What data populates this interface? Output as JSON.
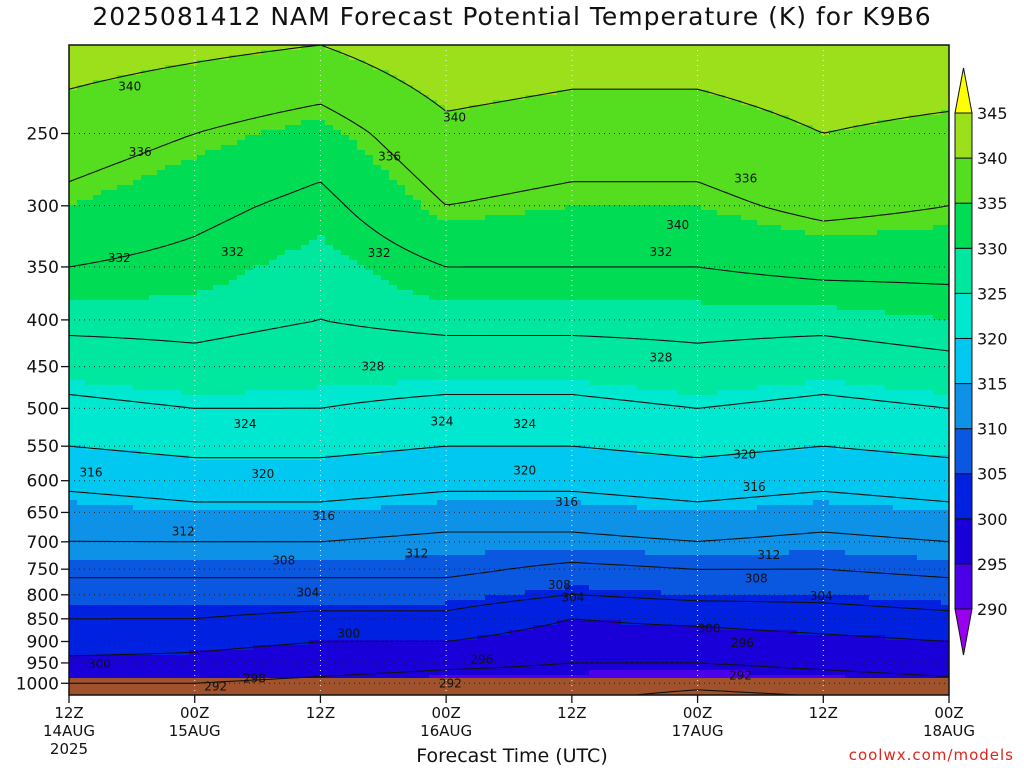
{
  "header": {
    "title": "2025081412 NAM Forecast Potential Temperature (K) for K9B6",
    "xlabel": "Forecast Time (UTC)",
    "credit": "coolwx.com/models"
  },
  "chart_data": {
    "type": "heatmap",
    "title": "2025081412 NAM Forecast Potential Temperature (K) for K9B6",
    "xlabel": "Forecast Time (UTC)",
    "ylabel": "",
    "y_axis": {
      "scale": "log-pressure, inverted",
      "ticks": [
        250,
        300,
        350,
        400,
        450,
        500,
        550,
        600,
        650,
        700,
        750,
        800,
        850,
        900,
        950,
        1000
      ],
      "range": [
        1030,
        200
      ]
    },
    "x_axis": {
      "range_hours": [
        0,
        84
      ],
      "ticks": [
        {
          "hour": 0,
          "line1": "12Z",
          "line2": "14AUG",
          "line3": "2025"
        },
        {
          "hour": 12,
          "line1": "00Z",
          "line2": "15AUG",
          "line3": ""
        },
        {
          "hour": 24,
          "line1": "12Z",
          "line2": "",
          "line3": ""
        },
        {
          "hour": 36,
          "line1": "00Z",
          "line2": "16AUG",
          "line3": ""
        },
        {
          "hour": 48,
          "line1": "12Z",
          "line2": "",
          "line3": ""
        },
        {
          "hour": 60,
          "line1": "00Z",
          "line2": "17AUG",
          "line3": ""
        },
        {
          "hour": 72,
          "line1": "12Z",
          "line2": "",
          "line3": ""
        },
        {
          "hour": 84,
          "line1": "00Z",
          "line2": "18AUG",
          "line3": ""
        }
      ]
    },
    "grid": true,
    "colorbar": {
      "ticks": [
        290,
        295,
        300,
        305,
        310,
        315,
        320,
        325,
        330,
        335,
        340,
        345
      ],
      "colors": [
        "#9900ee",
        "#4a00e8",
        "#1a00d8",
        "#0022e0",
        "#0a57e0",
        "#0d92e8",
        "#00c8f0",
        "#00e8d0",
        "#00e8a0",
        "#00dd55",
        "#55dd20",
        "#9be01a",
        "#ffff00"
      ],
      "placement": "right"
    },
    "contour_levels": [
      292,
      296,
      300,
      304,
      308,
      312,
      316,
      320,
      324,
      328,
      332,
      336,
      340
    ],
    "profile_hours": [
      0,
      12,
      24,
      36,
      48,
      60,
      72,
      84
    ],
    "profiles": [
      {
        "hour": 0,
        "p": [
          1000,
          950,
          900,
          850,
          800,
          750,
          700,
          650,
          600,
          550,
          500,
          450,
          400,
          350,
          300,
          250,
          200
        ],
        "theta": [
          296,
          299,
          302,
          304,
          306,
          309,
          312,
          314,
          317,
          320,
          323,
          326,
          329,
          332,
          335,
          338,
          342
        ]
      },
      {
        "hour": 12,
        "p": [
          1000,
          950,
          900,
          850,
          800,
          750,
          700,
          650,
          600,
          550,
          500,
          450,
          400,
          350,
          300,
          250,
          200
        ],
        "theta": [
          296,
          299,
          301,
          304,
          306,
          309,
          312,
          315,
          318,
          321,
          324,
          327,
          329,
          331,
          333,
          336,
          341
        ]
      },
      {
        "hour": 24,
        "p": [
          1000,
          950,
          900,
          850,
          800,
          750,
          700,
          650,
          600,
          550,
          500,
          450,
          400,
          350,
          300,
          250,
          200
        ],
        "theta": [
          295,
          298,
          300,
          303,
          306,
          309,
          312,
          315,
          318,
          321,
          324,
          326,
          328,
          329,
          331,
          334,
          340
        ]
      },
      {
        "hour": 36,
        "p": [
          1000,
          950,
          900,
          850,
          800,
          750,
          700,
          650,
          600,
          550,
          500,
          450,
          400,
          350,
          300,
          250,
          200
        ],
        "theta": [
          294,
          297,
          300,
          303,
          306,
          309,
          311,
          314,
          317,
          320,
          323,
          326,
          329,
          332,
          336,
          339,
          343
        ]
      },
      {
        "hour": 48,
        "p": [
          1000,
          950,
          900,
          850,
          800,
          750,
          700,
          650,
          600,
          550,
          500,
          450,
          400,
          350,
          300,
          250,
          200
        ],
        "theta": [
          294,
          296,
          298,
          300,
          304,
          307,
          311,
          314,
          317,
          320,
          323,
          326,
          329,
          332,
          335,
          338,
          342
        ]
      },
      {
        "hour": 60,
        "p": [
          1000,
          950,
          900,
          850,
          800,
          750,
          700,
          650,
          600,
          550,
          500,
          450,
          400,
          350,
          300,
          250,
          200
        ],
        "theta": [
          293,
          296,
          298,
          301,
          305,
          308,
          312,
          315,
          318,
          321,
          324,
          327,
          329,
          332,
          335,
          338,
          342
        ]
      },
      {
        "hour": 72,
        "p": [
          1000,
          950,
          900,
          850,
          800,
          750,
          700,
          650,
          600,
          550,
          500,
          450,
          400,
          350,
          300,
          250,
          200
        ],
        "theta": [
          294,
          297,
          299,
          302,
          305,
          308,
          311,
          314,
          317,
          320,
          323,
          326,
          329,
          333,
          337,
          340,
          343
        ]
      },
      {
        "hour": 84,
        "p": [
          1000,
          950,
          900,
          850,
          800,
          750,
          700,
          650,
          600,
          550,
          500,
          450,
          400,
          350,
          300,
          250,
          200
        ],
        "theta": [
          295,
          298,
          300,
          303,
          306,
          309,
          312,
          315,
          318,
          321,
          324,
          327,
          330,
          333,
          336,
          339,
          343
        ]
      }
    ],
    "contour_labels": [
      {
        "text": "340",
        "hour": 5.8,
        "p": 222
      },
      {
        "text": "340",
        "hour": 36.8,
        "p": 240
      },
      {
        "text": "340",
        "hour": 58.1,
        "p": 315
      },
      {
        "text": "336",
        "hour": 6.8,
        "p": 262
      },
      {
        "text": "336",
        "hour": 30.6,
        "p": 265
      },
      {
        "text": "336",
        "hour": 64.6,
        "p": 280
      },
      {
        "text": "332",
        "hour": 4.8,
        "p": 342
      },
      {
        "text": "332",
        "hour": 15.6,
        "p": 337
      },
      {
        "text": "332",
        "hour": 29.6,
        "p": 338
      },
      {
        "text": "332",
        "hour": 56.5,
        "p": 337
      },
      {
        "text": "328",
        "hour": 29.0,
        "p": 450
      },
      {
        "text": "328",
        "hour": 56.5,
        "p": 440
      },
      {
        "text": "324",
        "hour": 16.8,
        "p": 520
      },
      {
        "text": "324",
        "hour": 35.6,
        "p": 517
      },
      {
        "text": "324",
        "hour": 43.5,
        "p": 520
      },
      {
        "text": "320",
        "hour": 18.5,
        "p": 590
      },
      {
        "text": "320",
        "hour": 43.5,
        "p": 585
      },
      {
        "text": "320",
        "hour": 64.5,
        "p": 562
      },
      {
        "text": "316",
        "hour": 2.1,
        "p": 588
      },
      {
        "text": "316",
        "hour": 24.3,
        "p": 656
      },
      {
        "text": "316",
        "hour": 47.5,
        "p": 633
      },
      {
        "text": "316",
        "hour": 65.4,
        "p": 610
      },
      {
        "text": "312",
        "hour": 10.9,
        "p": 682
      },
      {
        "text": "312",
        "hour": 33.2,
        "p": 721
      },
      {
        "text": "312",
        "hour": 66.8,
        "p": 724
      },
      {
        "text": "308",
        "hour": 20.5,
        "p": 734
      },
      {
        "text": "308",
        "hour": 46.8,
        "p": 781
      },
      {
        "text": "308",
        "hour": 65.6,
        "p": 768
      },
      {
        "text": "304",
        "hour": 22.8,
        "p": 795
      },
      {
        "text": "304",
        "hour": 48.1,
        "p": 805
      },
      {
        "text": "304",
        "hour": 71.8,
        "p": 802
      },
      {
        "text": "300",
        "hour": 2.9,
        "p": 953
      },
      {
        "text": "300",
        "hour": 26.7,
        "p": 882
      },
      {
        "text": "300",
        "hour": 61.1,
        "p": 871
      },
      {
        "text": "296",
        "hour": 39.4,
        "p": 942
      },
      {
        "text": "296",
        "hour": 64.3,
        "p": 903
      },
      {
        "text": "292",
        "hour": 14.0,
        "p": 1008
      },
      {
        "text": "292",
        "hour": 36.4,
        "p": 1000
      },
      {
        "text": "292",
        "hour": 64.1,
        "p": 981
      },
      {
        "text": "298",
        "hour": 17.7,
        "p": 988
      }
    ]
  }
}
